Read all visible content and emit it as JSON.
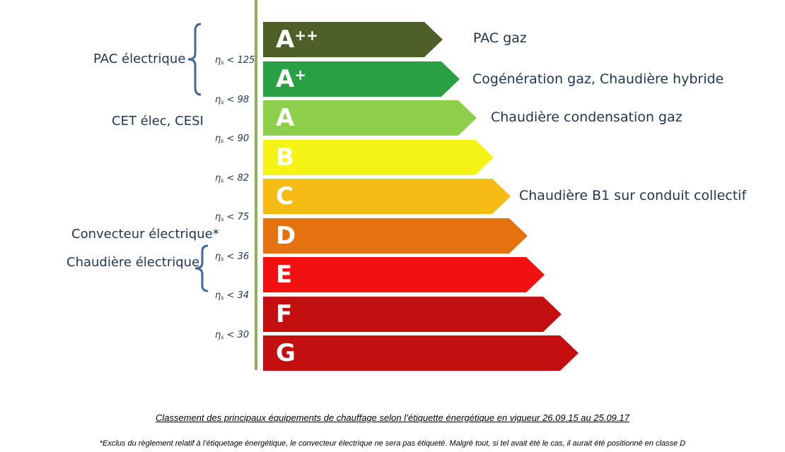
{
  "classes": [
    {
      "letter": "A",
      "sup": "++",
      "color": "#4f5f2a",
      "width": 254,
      "label": "PAC gaz"
    },
    {
      "letter": "A",
      "sup": "+",
      "color": "#2aa045",
      "width": 278,
      "label": "Cogénération gaz, Chaudière hybride"
    },
    {
      "letter": "A",
      "sup": "",
      "color": "#8dcf4a",
      "width": 302,
      "label": "Chaudière condensation gaz"
    },
    {
      "letter": "B",
      "sup": "",
      "color": "#f5f215",
      "width": 326,
      "label": ""
    },
    {
      "letter": "C",
      "sup": "",
      "color": "#f7bb16",
      "width": 350,
      "label": "Chaudière B1 sur conduit collectif"
    },
    {
      "letter": "D",
      "sup": "",
      "color": "#e4720f",
      "width": 374,
      "label": ""
    },
    {
      "letter": "E",
      "sup": "",
      "color": "#f11111",
      "width": 398,
      "label": ""
    },
    {
      "letter": "F",
      "sup": "",
      "color": "#c30f10",
      "width": 422,
      "label": ""
    },
    {
      "letter": "G",
      "sup": "",
      "color": "#c30f10",
      "width": 446,
      "label": ""
    }
  ],
  "thresholds": [
    "< 125",
    "< 98",
    "< 90",
    "< 82",
    "< 75",
    "< 36",
    "< 34",
    "< 30"
  ],
  "threshold_symbol": "η",
  "threshold_sub": "s",
  "left_labels": {
    "pac_electrique": "PAC électrique",
    "cet": "CET élec, CESI",
    "convecteur": "Convecteur électrique*",
    "chaudiere_electrique": "Chaudière électrique"
  },
  "caption": "Classement des principaux équipements de chauffage selon l’étiquette énergétique en vigueur 26.09.15 au 25.09.17",
  "footnote": "*Exclus du règlement relatif à l’étiquetage énergétique, le convecteur électrique ne sera pas étiqueté. Malgré tout, si tel avait été le cas, il aurait été positionné en classe D",
  "colors": {
    "axis": "#8fb05a",
    "brace": "#3f6a96",
    "text": "#1f3550"
  }
}
